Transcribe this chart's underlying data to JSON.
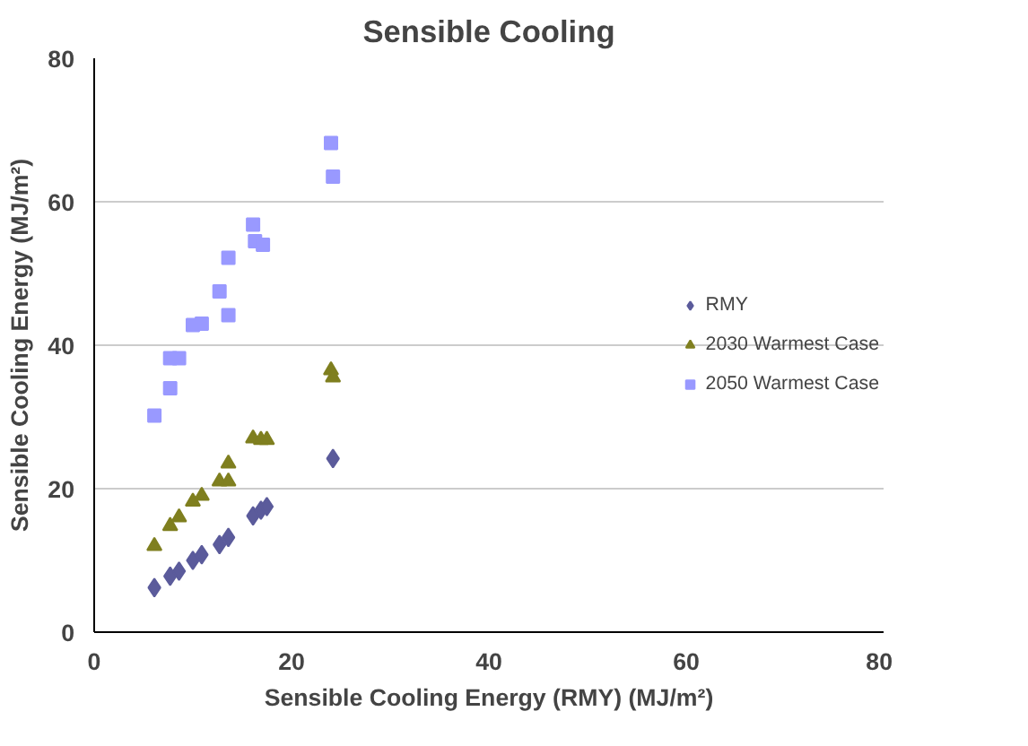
{
  "chart_data": {
    "type": "scatter",
    "title": "Sensible Cooling",
    "xlabel": "Sensible Cooling Energy (RMY) (MJ/m²)",
    "ylabel": "Sensible Cooling Energy (MJ/m²)",
    "xlim": [
      0,
      80
    ],
    "xticks": [
      0,
      20,
      40,
      60,
      80
    ],
    "ylim": [
      0,
      80
    ],
    "yticks": [
      0,
      20,
      40,
      60,
      80
    ],
    "grid": "y",
    "legend": "right",
    "series": [
      {
        "name": "RMY",
        "color": "#5b5b9b",
        "marker": "diamond",
        "x": [
          6.1,
          7.7,
          8.6,
          10.0,
          10.9,
          12.7,
          13.6,
          16.1,
          16.9,
          17.5,
          24.2
        ],
        "values": [
          6.2,
          7.8,
          8.5,
          10.0,
          10.8,
          12.2,
          13.2,
          16.2,
          17.0,
          17.5,
          24.2
        ]
      },
      {
        "name": "2030 Warmest Case",
        "color": "#7f7f1f",
        "marker": "triangle",
        "x": [
          6.1,
          7.7,
          8.6,
          10.0,
          10.9,
          12.7,
          13.6,
          13.6,
          16.1,
          16.9,
          17.5,
          24.0,
          24.2
        ],
        "values": [
          12.0,
          14.8,
          16.0,
          18.2,
          19.0,
          21.0,
          21.0,
          23.5,
          27.0,
          26.8,
          26.8,
          36.5,
          35.5
        ]
      },
      {
        "name": "2050 Warmest Case",
        "color": "#9999ff",
        "marker": "square",
        "x": [
          6.1,
          7.7,
          7.7,
          8.6,
          10.0,
          10.9,
          12.7,
          13.6,
          13.6,
          16.1,
          16.3,
          17.1,
          24.0,
          24.2
        ],
        "values": [
          30.2,
          34.0,
          38.2,
          38.2,
          42.8,
          43.0,
          47.5,
          44.2,
          52.2,
          56.8,
          54.5,
          54.0,
          68.2,
          63.5
        ]
      }
    ]
  }
}
